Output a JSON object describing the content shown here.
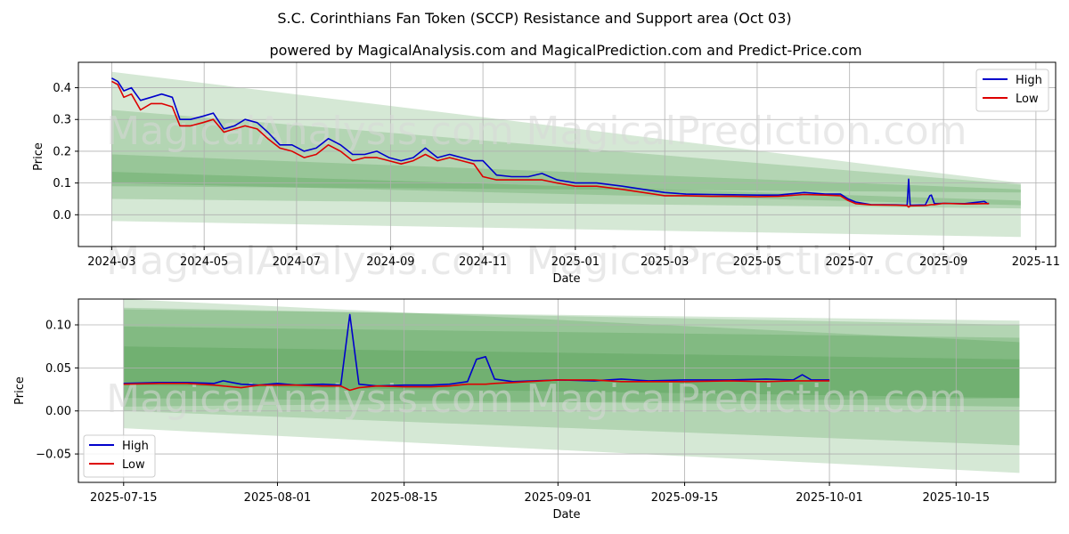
{
  "title": "S.C. Corinthians Fan Token (SCCP) Resistance and Support area (Oct 03)",
  "subtitle": "powered by MagicalAnalysis.com and MagicalPrediction.com and Predict-Price.com",
  "watermarks": [
    "MagicalAnalysis.com",
    "MagicalPrediction.com"
  ],
  "colors": {
    "high": "#0000cc",
    "low": "#dd0000",
    "band": "#2e8b2e"
  },
  "chart_data": [
    {
      "type": "line",
      "name": "full-history",
      "xlabel": "Date",
      "ylabel": "Price",
      "xlim": [
        "2024-02-08",
        "2025-11-14"
      ],
      "ylim": [
        -0.1,
        0.48
      ],
      "grid": true,
      "legend": "top-right",
      "yticks": [
        0.0,
        0.1,
        0.2,
        0.3,
        0.4
      ],
      "ytick_labels": [
        "0.0",
        "0.1",
        "0.2",
        "0.3",
        "0.4"
      ],
      "xticks": [
        "2024-03-01",
        "2024-05-01",
        "2024-07-01",
        "2024-09-01",
        "2024-11-01",
        "2025-01-01",
        "2025-03-01",
        "2025-05-01",
        "2025-07-01",
        "2025-09-01",
        "2025-11-01"
      ],
      "xtick_labels": [
        "2024-03",
        "2024-05",
        "2024-07",
        "2024-09",
        "2024-11",
        "2025-01",
        "2025-03",
        "2025-05",
        "2025-07",
        "2025-09",
        "2025-11"
      ],
      "series": [
        {
          "name": "High",
          "x": [
            "2024-03-01",
            "2024-03-05",
            "2024-03-09",
            "2024-03-14",
            "2024-03-20",
            "2024-03-27",
            "2024-04-03",
            "2024-04-10",
            "2024-04-15",
            "2024-04-22",
            "2024-04-30",
            "2024-05-07",
            "2024-05-14",
            "2024-05-21",
            "2024-05-28",
            "2024-06-05",
            "2024-06-12",
            "2024-06-20",
            "2024-06-28",
            "2024-07-06",
            "2024-07-14",
            "2024-07-22",
            "2024-07-30",
            "2024-08-07",
            "2024-08-15",
            "2024-08-23",
            "2024-08-31",
            "2024-09-08",
            "2024-09-16",
            "2024-09-24",
            "2024-10-02",
            "2024-10-10",
            "2024-10-18",
            "2024-10-26",
            "2024-11-01",
            "2024-11-10",
            "2024-11-20",
            "2024-12-01",
            "2024-12-10",
            "2024-12-20",
            "2025-01-01",
            "2025-01-15",
            "2025-02-01",
            "2025-02-15",
            "2025-03-01",
            "2025-03-15",
            "2025-04-01",
            "2025-04-15",
            "2025-05-01",
            "2025-05-15",
            "2025-06-01",
            "2025-06-15",
            "2025-06-25",
            "2025-06-30",
            "2025-07-05",
            "2025-07-15",
            "2025-08-01",
            "2025-08-08",
            "2025-08-09",
            "2025-08-10",
            "2025-08-20",
            "2025-08-23",
            "2025-08-24",
            "2025-08-26",
            "2025-09-01",
            "2025-09-15",
            "2025-09-28",
            "2025-09-30",
            "2025-10-01"
          ],
          "values": [
            0.43,
            0.42,
            0.39,
            0.4,
            0.36,
            0.37,
            0.38,
            0.37,
            0.3,
            0.3,
            0.31,
            0.32,
            0.27,
            0.28,
            0.3,
            0.29,
            0.26,
            0.22,
            0.22,
            0.2,
            0.21,
            0.24,
            0.22,
            0.19,
            0.19,
            0.2,
            0.18,
            0.17,
            0.18,
            0.21,
            0.18,
            0.19,
            0.18,
            0.17,
            0.17,
            0.125,
            0.12,
            0.12,
            0.13,
            0.11,
            0.1,
            0.1,
            0.09,
            0.08,
            0.07,
            0.065,
            0.064,
            0.063,
            0.062,
            0.062,
            0.07,
            0.065,
            0.065,
            0.05,
            0.04,
            0.032,
            0.031,
            0.03,
            0.112,
            0.03,
            0.031,
            0.06,
            0.062,
            0.035,
            0.036,
            0.035,
            0.042,
            0.035,
            0.036
          ]
        },
        {
          "name": "Low",
          "x": [
            "2024-03-01",
            "2024-03-05",
            "2024-03-09",
            "2024-03-14",
            "2024-03-20",
            "2024-03-27",
            "2024-04-03",
            "2024-04-10",
            "2024-04-15",
            "2024-04-22",
            "2024-04-30",
            "2024-05-07",
            "2024-05-14",
            "2024-05-21",
            "2024-05-28",
            "2024-06-05",
            "2024-06-12",
            "2024-06-20",
            "2024-06-28",
            "2024-07-06",
            "2024-07-14",
            "2024-07-22",
            "2024-07-30",
            "2024-08-07",
            "2024-08-15",
            "2024-08-23",
            "2024-08-31",
            "2024-09-08",
            "2024-09-16",
            "2024-09-24",
            "2024-10-02",
            "2024-10-10",
            "2024-10-18",
            "2024-10-26",
            "2024-11-01",
            "2024-11-10",
            "2024-11-20",
            "2024-12-01",
            "2024-12-10",
            "2024-12-20",
            "2025-01-01",
            "2025-01-15",
            "2025-02-01",
            "2025-02-15",
            "2025-03-01",
            "2025-03-15",
            "2025-04-01",
            "2025-04-15",
            "2025-05-01",
            "2025-05-15",
            "2025-06-01",
            "2025-06-15",
            "2025-06-25",
            "2025-06-30",
            "2025-07-05",
            "2025-07-15",
            "2025-08-01",
            "2025-08-08",
            "2025-08-09",
            "2025-08-10",
            "2025-08-20",
            "2025-08-23",
            "2025-08-24",
            "2025-08-26",
            "2025-09-01",
            "2025-09-15",
            "2025-09-28",
            "2025-09-30",
            "2025-10-01"
          ],
          "values": [
            0.42,
            0.41,
            0.37,
            0.38,
            0.33,
            0.35,
            0.35,
            0.34,
            0.28,
            0.28,
            0.29,
            0.3,
            0.26,
            0.27,
            0.28,
            0.27,
            0.24,
            0.21,
            0.2,
            0.18,
            0.19,
            0.22,
            0.2,
            0.17,
            0.18,
            0.18,
            0.17,
            0.16,
            0.17,
            0.19,
            0.17,
            0.18,
            0.17,
            0.16,
            0.12,
            0.11,
            0.11,
            0.11,
            0.11,
            0.1,
            0.09,
            0.09,
            0.08,
            0.07,
            0.06,
            0.06,
            0.058,
            0.058,
            0.057,
            0.058,
            0.064,
            0.062,
            0.06,
            0.045,
            0.035,
            0.031,
            0.03,
            0.029,
            0.024,
            0.028,
            0.029,
            0.031,
            0.032,
            0.032,
            0.036,
            0.034,
            0.035,
            0.035,
            0.035
          ]
        }
      ],
      "bands": [
        {
          "from": "2024-03-01",
          "to": "2025-10-22",
          "start": [
            0.09,
            0.19
          ],
          "end": [
            0.07,
            0.08
          ]
        },
        {
          "from": "2024-03-01",
          "to": "2025-10-22",
          "start": [
            0.1,
            0.135
          ],
          "end": [
            0.03,
            0.045
          ]
        },
        {
          "from": "2024-03-01",
          "to": "2025-10-22",
          "start": [
            0.05,
            0.33
          ],
          "end": [
            0.02,
            0.095
          ]
        },
        {
          "from": "2024-03-01",
          "to": "2025-10-22",
          "start": [
            -0.02,
            0.45
          ],
          "end": [
            -0.07,
            0.1
          ]
        }
      ]
    },
    {
      "type": "line",
      "name": "recent-zoom",
      "xlabel": "Date",
      "ylabel": "Price",
      "xlim": [
        "2025-07-10",
        "2025-10-26"
      ],
      "ylim": [
        -0.083,
        0.13
      ],
      "grid": true,
      "legend": "bottom-left",
      "yticks": [
        -0.05,
        0.0,
        0.05,
        0.1
      ],
      "ytick_labels": [
        "−0.05",
        "0.00",
        "0.05",
        "0.10"
      ],
      "xticks": [
        "2025-07-15",
        "2025-08-01",
        "2025-08-15",
        "2025-09-01",
        "2025-09-15",
        "2025-10-01",
        "2025-10-15"
      ],
      "xtick_labels": [
        "2025-07-15",
        "2025-08-01",
        "2025-08-15",
        "2025-09-01",
        "2025-09-15",
        "2025-10-01",
        "2025-10-15"
      ],
      "series": [
        {
          "name": "High",
          "x": [
            "2025-07-15",
            "2025-07-19",
            "2025-07-22",
            "2025-07-25",
            "2025-07-26",
            "2025-07-28",
            "2025-07-30",
            "2025-08-01",
            "2025-08-03",
            "2025-08-06",
            "2025-08-08",
            "2025-08-09",
            "2025-08-10",
            "2025-08-12",
            "2025-08-15",
            "2025-08-18",
            "2025-08-20",
            "2025-08-22",
            "2025-08-23",
            "2025-08-24",
            "2025-08-25",
            "2025-08-27",
            "2025-09-01",
            "2025-09-05",
            "2025-09-08",
            "2025-09-11",
            "2025-09-15",
            "2025-09-20",
            "2025-09-24",
            "2025-09-27",
            "2025-09-28",
            "2025-09-29",
            "2025-10-01"
          ],
          "values": [
            0.032,
            0.033,
            0.033,
            0.032,
            0.035,
            0.031,
            0.03,
            0.032,
            0.03,
            0.031,
            0.03,
            0.112,
            0.031,
            0.029,
            0.03,
            0.03,
            0.031,
            0.034,
            0.06,
            0.063,
            0.037,
            0.034,
            0.036,
            0.035,
            0.037,
            0.035,
            0.036,
            0.036,
            0.037,
            0.036,
            0.042,
            0.036,
            0.036
          ]
        },
        {
          "name": "Low",
          "x": [
            "2025-07-15",
            "2025-07-19",
            "2025-07-22",
            "2025-07-25",
            "2025-07-26",
            "2025-07-28",
            "2025-07-30",
            "2025-08-01",
            "2025-08-03",
            "2025-08-06",
            "2025-08-08",
            "2025-08-09",
            "2025-08-10",
            "2025-08-12",
            "2025-08-15",
            "2025-08-18",
            "2025-08-20",
            "2025-08-22",
            "2025-08-23",
            "2025-08-24",
            "2025-08-25",
            "2025-08-27",
            "2025-09-01",
            "2025-09-05",
            "2025-09-08",
            "2025-09-11",
            "2025-09-15",
            "2025-09-20",
            "2025-09-24",
            "2025-09-27",
            "2025-09-28",
            "2025-09-29",
            "2025-10-01"
          ],
          "values": [
            0.031,
            0.032,
            0.032,
            0.03,
            0.029,
            0.027,
            0.03,
            0.03,
            0.03,
            0.029,
            0.029,
            0.024,
            0.027,
            0.029,
            0.028,
            0.028,
            0.029,
            0.031,
            0.031,
            0.031,
            0.032,
            0.033,
            0.036,
            0.036,
            0.034,
            0.034,
            0.034,
            0.035,
            0.034,
            0.035,
            0.035,
            0.035,
            0.035
          ]
        }
      ],
      "bands": [
        {
          "from": "2025-07-15",
          "to": "2025-10-22",
          "start": [
            0.03,
            0.118
          ],
          "end": [
            0.015,
            0.105
          ]
        },
        {
          "from": "2025-07-15",
          "to": "2025-10-22",
          "start": [
            0.015,
            0.098
          ],
          "end": [
            0.005,
            0.085
          ]
        },
        {
          "from": "2025-07-15",
          "to": "2025-10-22",
          "start": [
            0.005,
            0.075
          ],
          "end": [
            0.015,
            0.06
          ]
        },
        {
          "from": "2025-07-15",
          "to": "2025-10-22",
          "start": [
            -0.02,
            0.12
          ],
          "end": [
            -0.072,
            0.1
          ]
        },
        {
          "from": "2025-07-15",
          "to": "2025-10-22",
          "start": [
            0.0,
            0.13
          ],
          "end": [
            -0.04,
            0.08
          ]
        }
      ]
    }
  ]
}
